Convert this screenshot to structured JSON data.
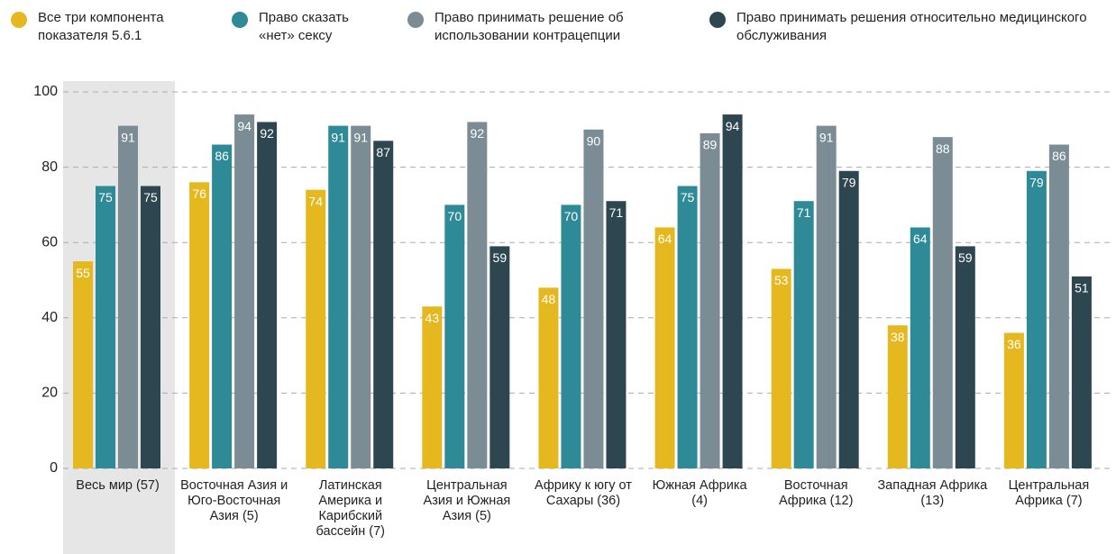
{
  "chart_data": {
    "type": "bar",
    "categories": [
      "Весь мир (57)",
      "Восточная Азия и Юго-Восточная Азия (5)",
      "Латинская Америка и Карибский бассейн (7)",
      "Центральная Азия и Южная Азия (5)",
      "Африку к югу от Сахары (36)",
      "Южная Африка (4)",
      "Восточная Африка (12)",
      "Западная Африка (13)",
      "Центральная Африка (7)"
    ],
    "series": [
      {
        "name": "Все три компонента показателя 5.6.1",
        "color": "#e6b820",
        "values": [
          55,
          76,
          74,
          43,
          48,
          64,
          53,
          38,
          36
        ]
      },
      {
        "name": "Право сказать «нет» сексу",
        "color": "#2e8a96",
        "values": [
          75,
          86,
          91,
          70,
          70,
          75,
          71,
          64,
          79
        ]
      },
      {
        "name": "Право принимать решение об использовании контрацепции",
        "color": "#7b8c94",
        "values": [
          91,
          94,
          91,
          92,
          90,
          89,
          91,
          88,
          86
        ]
      },
      {
        "name": "Право принимать решения относительно медицинского обслуживания",
        "color": "#2e4650",
        "values": [
          75,
          92,
          87,
          59,
          71,
          94,
          79,
          59,
          51
        ]
      }
    ],
    "ylim": [
      0,
      100
    ],
    "yticks": [
      0,
      20,
      40,
      60,
      80,
      100
    ],
    "grid": true,
    "highlight_index": 0,
    "legend": "top"
  }
}
